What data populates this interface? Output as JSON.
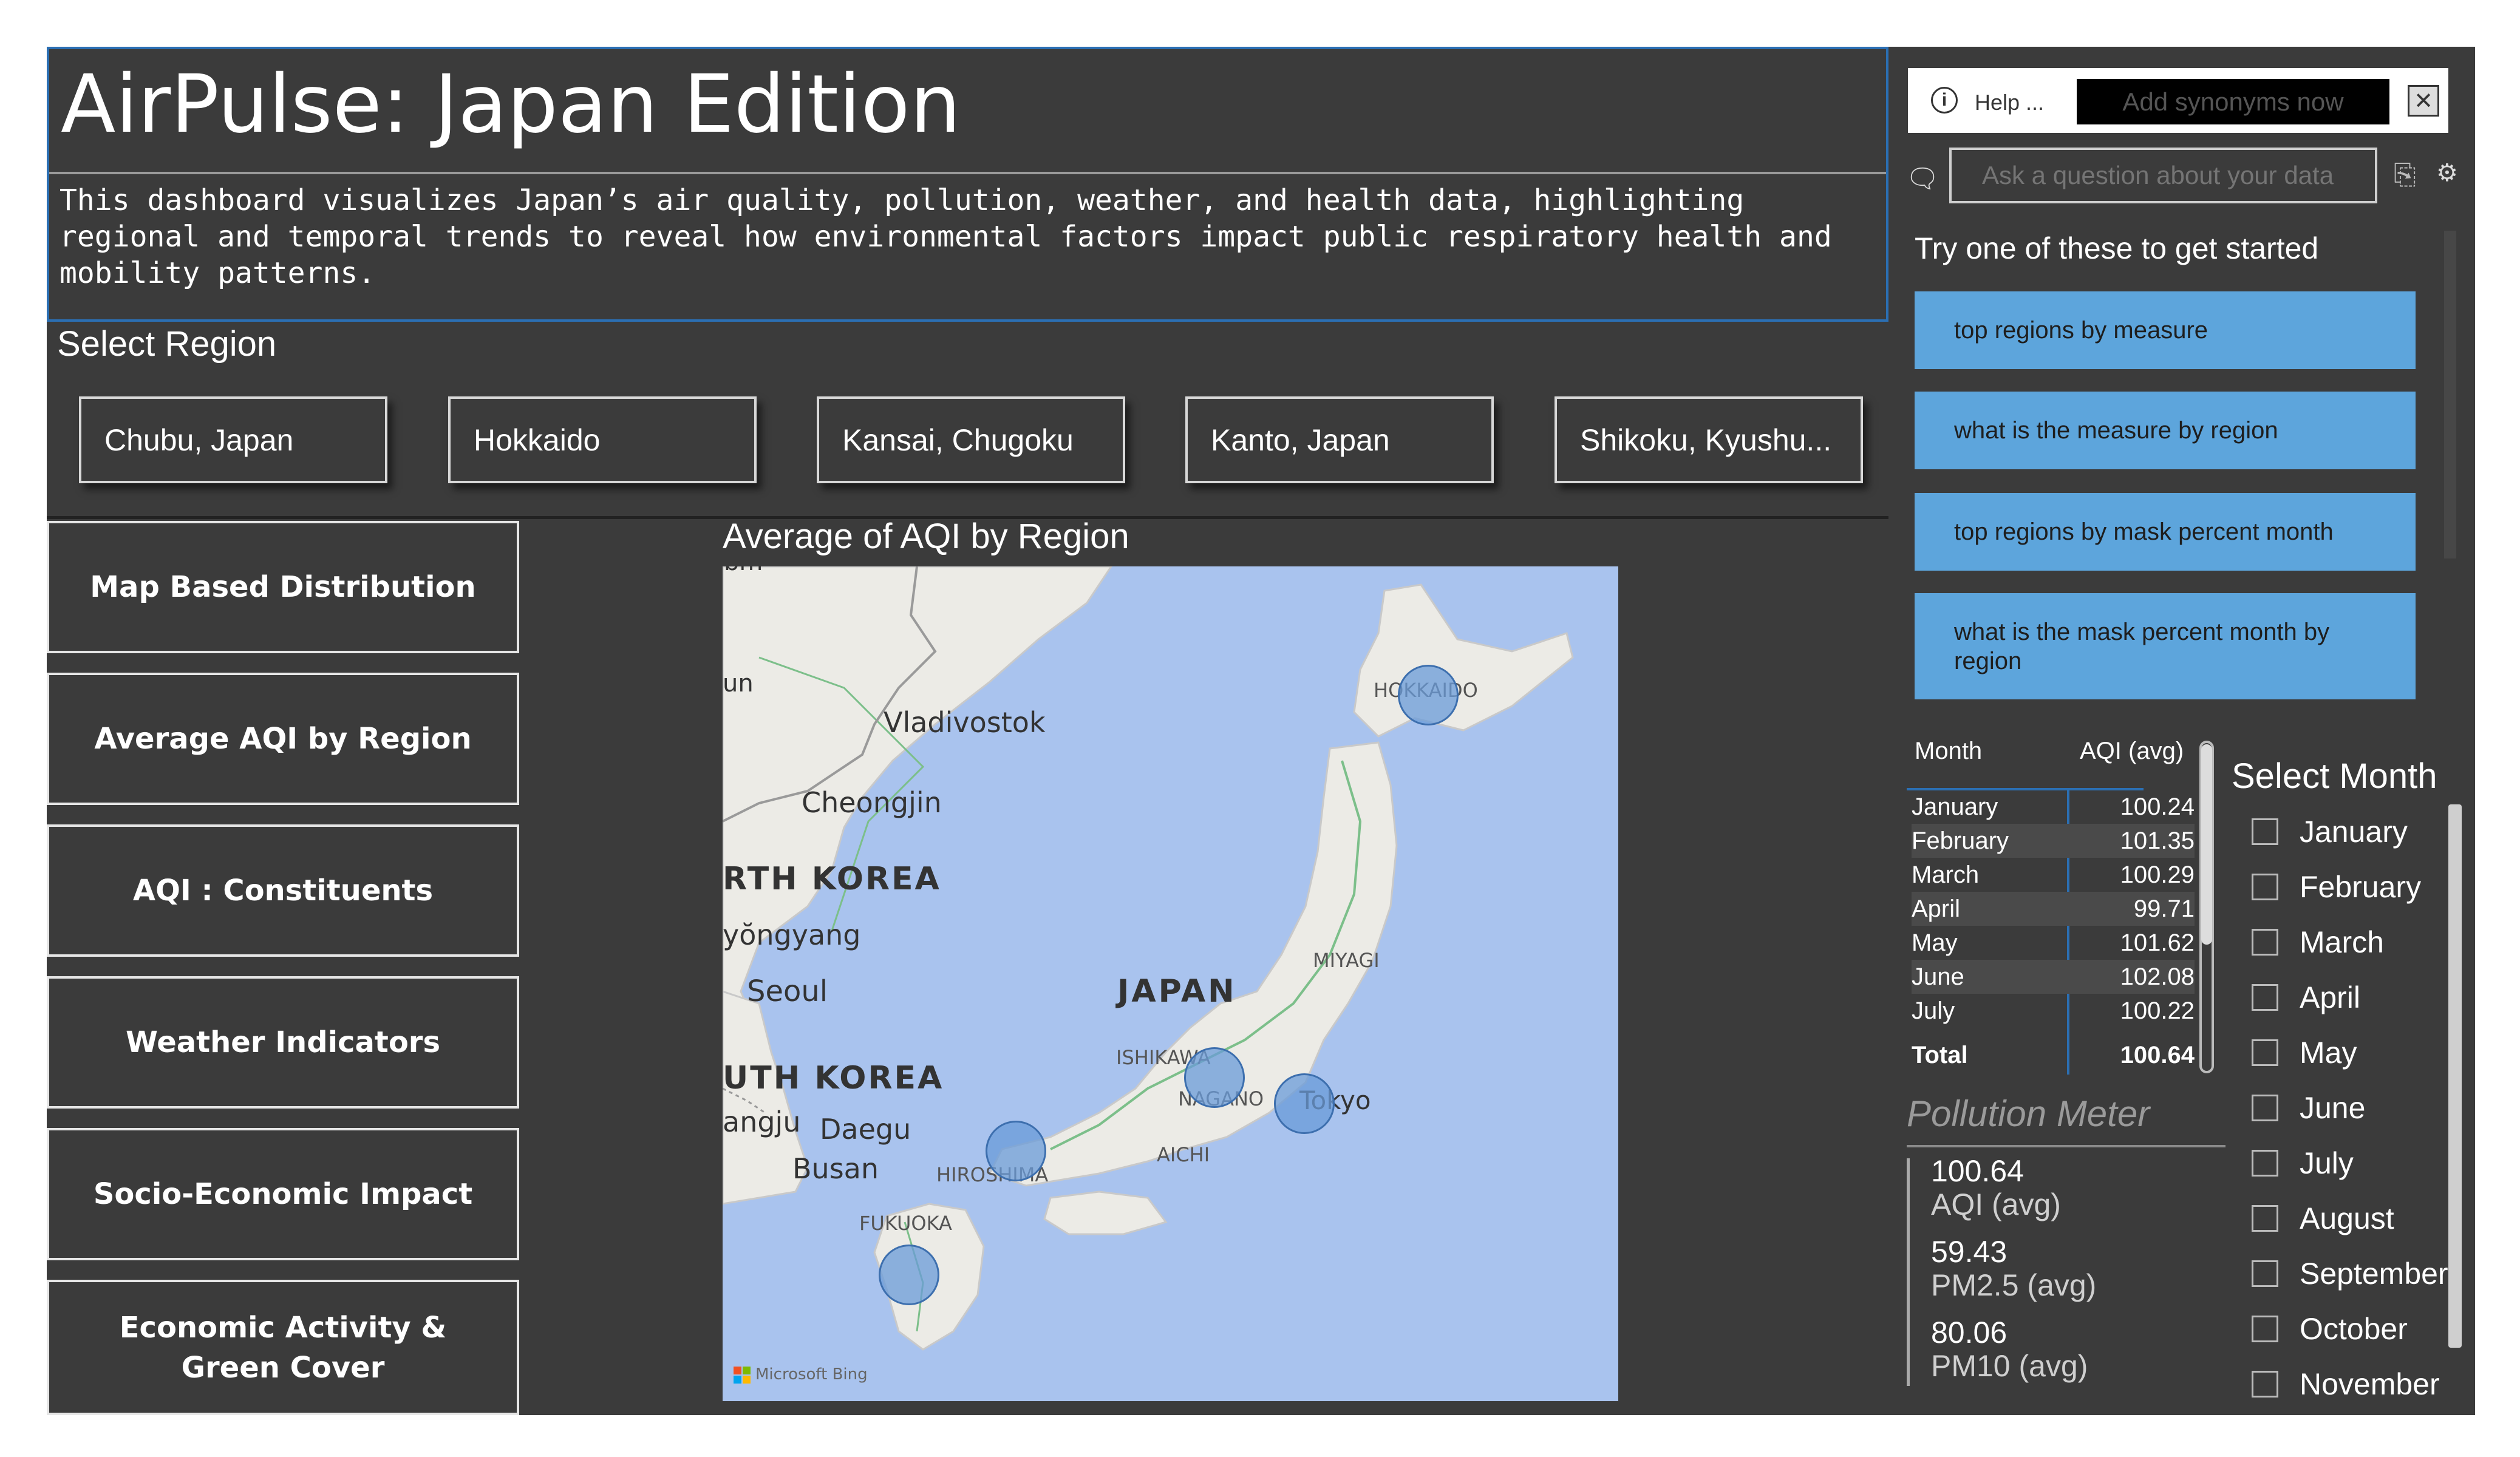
{
  "header": {
    "title": "AirPulse: Japan Edition",
    "description": "This dashboard visualizes Japan’s air quality, pollution, weather, and health data, highlighting regional and temporal trends to reveal how environmental factors impact public respiratory health and mobility patterns."
  },
  "region_slicer": {
    "label": "Select Region",
    "options": [
      "Chubu, Japan",
      "Hokkaido",
      "Kansai, Chugoku",
      "Kanto, Japan",
      "Shikoku, Kyushu..."
    ]
  },
  "nav": {
    "items": [
      "Map Based Distribution",
      "Average AQI by Region",
      "AQI : Constituents",
      "Weather Indicators",
      "Socio-Economic Impact",
      "Economic Activity & Green Cover"
    ]
  },
  "map": {
    "title": "Average of AQI by Region",
    "attribution": "Microsoft Bing",
    "labels": {
      "vladivostok": "Vladivostok",
      "cheongjin": "Cheongjin",
      "north_korea": "RTH KOREA",
      "pyongyang": "yŏngyang",
      "seoul": "Seoul",
      "south_korea": "UTH KOREA",
      "gwangju": "angju",
      "daegu": "Daegu",
      "busan": "Busan",
      "japan": "JAPAN",
      "hokkaido": "HOKKAIDO",
      "miyagi": "MIYAGI",
      "ishikawa": "ISHIKAWA",
      "nagano": "NAGANO",
      "tokyo": "Tokyo",
      "aichi": "AICHI",
      "hiroshima": "HIROSHIMA",
      "fukuoka": "FUKUOKA",
      "edge_un": "un",
      "edge_bm": "bm"
    }
  },
  "qa": {
    "help": "Help ...",
    "add_synonyms": "Add synonyms now",
    "close": "✕",
    "placeholder": "Ask a question about your data",
    "try_label": "Try one of these to get started",
    "suggestions": [
      "top regions by measure",
      "what is the measure by region",
      "top regions by mask percent month",
      "what is the mask percent month by region"
    ]
  },
  "aqi_table": {
    "col_month": "Month",
    "col_aqi": "AQI (avg)",
    "rows": [
      {
        "month": "January",
        "aqi": "100.24"
      },
      {
        "month": "February",
        "aqi": "101.35"
      },
      {
        "month": "March",
        "aqi": "100.29"
      },
      {
        "month": "April",
        "aqi": "99.71"
      },
      {
        "month": "May",
        "aqi": "101.62"
      },
      {
        "month": "June",
        "aqi": "102.08"
      },
      {
        "month": "July",
        "aqi": "100.22"
      }
    ],
    "total_label": "Total",
    "total_value": "100.64"
  },
  "pollution_meter": {
    "title": "Pollution Meter",
    "items": [
      {
        "value": "100.64",
        "label": "AQI (avg)"
      },
      {
        "value": "59.43",
        "label": "PM2.5 (avg)"
      },
      {
        "value": "80.06",
        "label": "PM10 (avg)"
      }
    ]
  },
  "month_slicer": {
    "title": "Select Month",
    "months": [
      "January",
      "February",
      "March",
      "April",
      "May",
      "June",
      "July",
      "August",
      "September",
      "October",
      "November"
    ]
  },
  "colors": {
    "background": "#3b3b3b",
    "accent": "#2b6fb3",
    "suggestion": "#5da5dc",
    "map_water": "#a9c3ee",
    "bubble": "#6a9bd8"
  },
  "icons": {
    "info": "info-icon",
    "chat": "chat-icon",
    "share": "share-icon",
    "settings": "gear-icon",
    "close": "close-icon"
  }
}
